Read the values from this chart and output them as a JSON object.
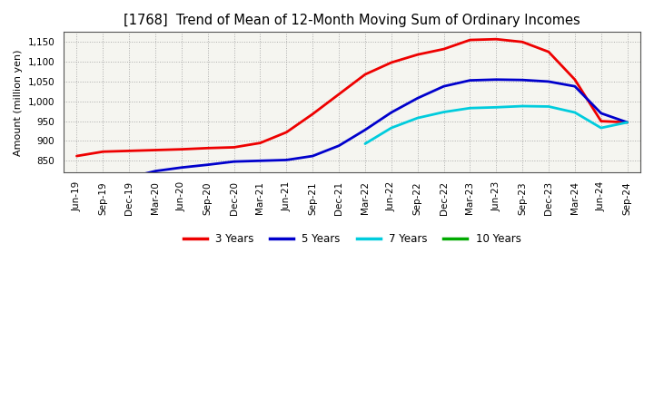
{
  "title": "[1768]  Trend of Mean of 12-Month Moving Sum of Ordinary Incomes",
  "ylabel": "Amount (million yen)",
  "background_color": "#ffffff",
  "plot_bg_color": "#f5f5f0",
  "grid_color": "#999999",
  "x_labels": [
    "Jun-19",
    "Sep-19",
    "Dec-19",
    "Mar-20",
    "Jun-20",
    "Sep-20",
    "Dec-20",
    "Mar-21",
    "Jun-21",
    "Sep-21",
    "Dec-21",
    "Mar-22",
    "Jun-22",
    "Sep-22",
    "Dec-22",
    "Mar-23",
    "Jun-23",
    "Sep-23",
    "Dec-23",
    "Mar-24",
    "Jun-24",
    "Sep-24"
  ],
  "ylim": [
    820,
    1175
  ],
  "yticks": [
    850,
    900,
    950,
    1000,
    1050,
    1100,
    1150
  ],
  "series": {
    "3 Years": {
      "color": "#ee0000",
      "data_x": [
        0,
        1,
        2,
        3,
        4,
        5,
        6,
        7,
        8,
        9,
        10,
        11,
        12,
        13,
        14,
        15,
        16,
        17,
        18,
        19,
        20,
        21
      ],
      "data_y": [
        862,
        873,
        875,
        877,
        879,
        882,
        884,
        895,
        922,
        968,
        1018,
        1068,
        1098,
        1118,
        1132,
        1155,
        1157,
        1150,
        1125,
        1055,
        950,
        947
      ]
    },
    "5 Years": {
      "color": "#0000cc",
      "data_x": [
        2,
        3,
        4,
        5,
        6,
        7,
        8,
        9,
        10,
        11,
        12,
        13,
        14,
        15,
        16,
        17,
        18,
        19,
        20,
        21
      ],
      "data_y": [
        808,
        824,
        833,
        840,
        848,
        850,
        852,
        862,
        888,
        928,
        972,
        1008,
        1038,
        1053,
        1055,
        1054,
        1050,
        1038,
        970,
        947
      ]
    },
    "7 Years": {
      "color": "#00ccdd",
      "data_x": [
        11,
        12,
        13,
        14,
        15,
        16,
        17,
        18,
        19,
        20,
        21
      ],
      "data_y": [
        893,
        933,
        958,
        973,
        983,
        985,
        988,
        987,
        972,
        933,
        947
      ]
    },
    "10 Years": {
      "color": "#00aa00",
      "data_x": [],
      "data_y": []
    }
  },
  "legend_labels": [
    "3 Years",
    "5 Years",
    "7 Years",
    "10 Years"
  ],
  "legend_colors": [
    "#ee0000",
    "#0000cc",
    "#00ccdd",
    "#00aa00"
  ],
  "title_fontsize": 10.5,
  "axis_label_fontsize": 8,
  "tick_fontsize": 7.5,
  "legend_fontsize": 8.5,
  "linewidth": 2.0
}
